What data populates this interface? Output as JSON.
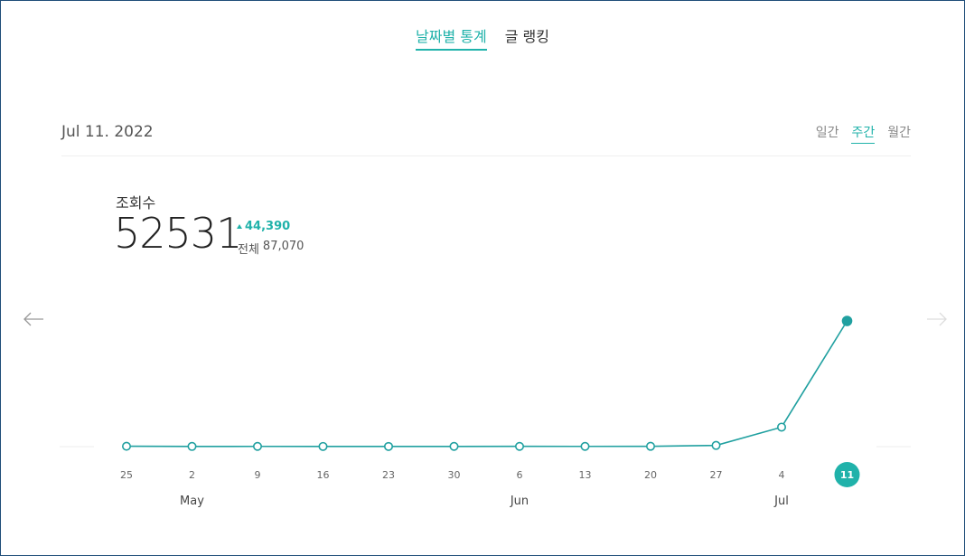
{
  "tabs": [
    {
      "label": "날짜별 통계",
      "active": true
    },
    {
      "label": "글 랭킹",
      "active": false
    }
  ],
  "date": "Jul 11. 2022",
  "periods": [
    {
      "label": "일간",
      "active": false
    },
    {
      "label": "주간",
      "active": true
    },
    {
      "label": "월간",
      "active": false
    }
  ],
  "metric": {
    "label": "조회수",
    "value": "52531",
    "delta": "44,390",
    "total_label": "전체",
    "total": "87,070"
  },
  "colors": {
    "accent": "#20b2aa",
    "line": "#20a0a0"
  },
  "chart_data": {
    "type": "line",
    "categories": [
      "25",
      "2",
      "9",
      "16",
      "23",
      "30",
      "6",
      "13",
      "20",
      "27",
      "4",
      "11"
    ],
    "months": [
      {
        "label": "May",
        "index": 1
      },
      {
        "label": "Jun",
        "index": 6
      },
      {
        "label": "Jul",
        "index": 10
      }
    ],
    "values": [
      150,
      80,
      90,
      70,
      60,
      85,
      100,
      90,
      130,
      500,
      8141,
      52531
    ],
    "ylim": [
      0,
      52531
    ],
    "highlight_index": 11,
    "grid": false
  }
}
